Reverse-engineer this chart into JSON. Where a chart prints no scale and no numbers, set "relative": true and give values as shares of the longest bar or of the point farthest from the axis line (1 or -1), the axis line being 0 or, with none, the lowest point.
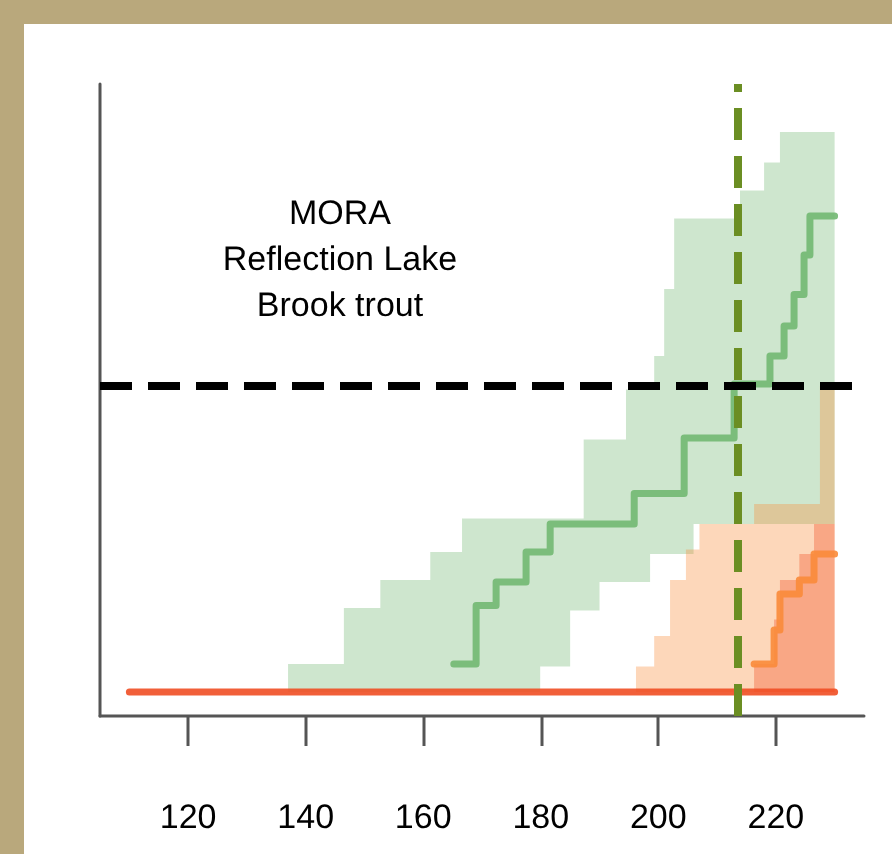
{
  "chart_data": {
    "type": "step",
    "title": "MORA\nReflection Lake\nBrook trout",
    "relative": true,
    "grid": false,
    "marker": "none",
    "line_style": "solid",
    "xlim": [
      105,
      235
    ],
    "xticks": [
      120,
      140,
      160,
      180,
      200,
      220
    ],
    "series": [
      {
        "color": "#72b872",
        "x": [
          137,
          146.5,
          152.7,
          160,
          161.2,
          165.2,
          166.6,
          169,
          172.4,
          177.5,
          179.9,
          181.6,
          185,
          187.3,
          190,
          194.5,
          195.9,
          198.6,
          199.3,
          201,
          202.7,
          204.4,
          206,
          212.9,
          213.9,
          218,
          219,
          220.7,
          221.4,
          223.1,
          224.8,
          225.8,
          230
        ],
        "values": [
          null,
          null,
          null,
          null,
          null,
          0.104,
          0.104,
          0.221,
          0.268,
          0.328,
          0.328,
          0.384,
          0.384,
          0.384,
          0.384,
          0.384,
          0.445,
          0.445,
          0.445,
          0.445,
          0.445,
          0.556,
          0.556,
          0.664,
          0.664,
          0.664,
          0.72,
          0.72,
          0.78,
          0.843,
          0.922,
          1,
          1
        ],
        "lower": [
          0.048,
          0.048,
          0.048,
          0.048,
          0.048,
          0.048,
          0.048,
          0.048,
          0.048,
          0.048,
          0.099,
          0.099,
          0.211,
          0.211,
          0.268,
          0.268,
          0.268,
          0.324,
          0.324,
          0.324,
          0.324,
          0.324,
          0.384,
          0.384,
          0.384,
          0.384,
          0.384,
          0.384,
          0.384,
          0.384,
          0.384,
          0.384,
          0.384
        ],
        "upper": [
          0.104,
          0.216,
          0.272,
          0.272,
          0.328,
          0.328,
          0.395,
          0.395,
          0.395,
          0.395,
          0.395,
          0.395,
          0.395,
          0.553,
          0.553,
          0.653,
          0.653,
          0.653,
          0.72,
          0.854,
          0.995,
          0.995,
          0.995,
          0.995,
          1.051,
          1.107,
          1.107,
          1.168,
          1.168,
          1.168,
          1.168,
          1.168,
          1.168
        ]
      },
      {
        "color": "#f98b3a",
        "x": [
          196.2,
          199.3,
          202,
          204.7,
          207,
          214.6,
          216.3,
          219.7,
          220.7,
          224,
          226.5,
          227.5,
          230
        ],
        "values": [
          null,
          null,
          null,
          null,
          null,
          null,
          0.104,
          0.172,
          0.244,
          0.272,
          0.324,
          0.324,
          0.324
        ],
        "lower": [
          0.048,
          0.048,
          0.048,
          0.048,
          0.048,
          0.048,
          0.048,
          0.048,
          0.048,
          0.048,
          0.048,
          0.048,
          0.048
        ],
        "upper": [
          0.099,
          0.16,
          0.272,
          0.333,
          0.384,
          0.384,
          0.424,
          0.424,
          0.424,
          0.424,
          0.424,
          0.66,
          0.66
        ]
      },
      {
        "color": "#f04e23",
        "x": [
          110,
          216.3,
          219.7,
          220.7,
          224,
          226.5,
          230
        ],
        "values": [
          0.048,
          0.048,
          0.048,
          0.048,
          0.048,
          0.048,
          0.048
        ],
        "lower": [
          0.048,
          0.048,
          0.048,
          0.048,
          0.048,
          0.048,
          0.048
        ],
        "upper": [
          0.048,
          0.104,
          0.193,
          0.272,
          0.324,
          0.384,
          0.384
        ]
      }
    ],
    "ref_lines": [
      {
        "axis": "y",
        "value": 0.664,
        "color": "#000000",
        "line_style": "dashed"
      },
      {
        "axis": "x",
        "value": 213.5,
        "color": "#6b8e23",
        "line_style": "dashed"
      }
    ]
  }
}
